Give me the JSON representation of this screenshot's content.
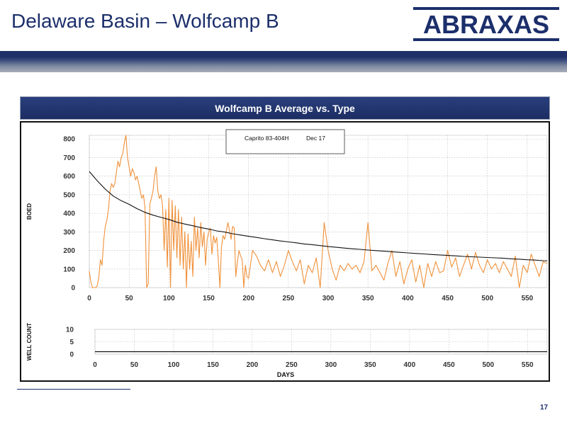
{
  "slide": {
    "title": "Delaware Basin – Wolfcamp B",
    "logo_text": "ABRAXAS",
    "page_number": "17"
  },
  "chart_header": {
    "title": "Wolfcamp B Average vs. Type"
  },
  "colors": {
    "brand_navy": "#1c2f6b",
    "actual_line": "#f0913a",
    "type_curve": "#111111"
  },
  "chart_data": [
    {
      "type": "line",
      "ylabel": "BOED",
      "xlabel": "",
      "xlim": [
        0,
        575
      ],
      "ylim": [
        0,
        820
      ],
      "xticks": [
        0,
        50,
        100,
        150,
        200,
        250,
        300,
        350,
        400,
        450,
        500,
        550
      ],
      "yticks": [
        0,
        100,
        200,
        300,
        400,
        500,
        600,
        700,
        800
      ],
      "grid": true,
      "legend": "top-center",
      "legend_entries": [
        "Caprito 83-404H",
        "Dec 17"
      ],
      "series": [
        {
          "x": [
            0,
            2,
            4,
            6,
            8,
            10,
            12,
            14,
            16,
            18,
            20,
            22,
            24,
            26,
            28,
            30,
            32,
            34,
            36,
            38,
            40,
            42,
            44,
            46,
            48,
            50,
            52,
            54,
            56,
            58,
            60,
            62,
            64,
            66,
            68,
            70,
            72,
            74,
            76,
            78,
            80,
            82,
            84,
            86,
            88,
            90,
            92,
            94,
            96,
            98,
            100,
            102,
            104,
            106,
            108,
            110,
            112,
            114,
            116,
            118,
            120,
            122,
            124,
            126,
            128,
            130,
            132,
            134,
            136,
            138,
            140,
            142,
            144,
            146,
            148,
            150,
            152,
            154,
            156,
            158,
            160,
            162,
            164,
            166,
            168,
            170,
            172,
            174,
            176,
            178,
            180,
            182,
            184,
            186,
            188,
            190,
            192,
            194,
            196,
            198,
            200,
            205,
            210,
            215,
            220,
            225,
            230,
            235,
            240,
            245,
            250,
            255,
            260,
            265,
            270,
            275,
            280,
            285,
            290,
            295,
            300,
            305,
            310,
            315,
            320,
            325,
            330,
            335,
            340,
            345,
            350,
            355,
            360,
            365,
            370,
            375,
            380,
            385,
            390,
            395,
            400,
            405,
            410,
            415,
            420,
            425,
            430,
            435,
            440,
            445,
            450,
            455,
            460,
            465,
            470,
            475,
            480,
            485,
            490,
            495,
            500,
            505,
            510,
            515,
            520,
            525,
            530,
            535,
            540,
            545,
            550,
            555,
            560,
            565,
            570,
            575
          ],
          "y": [
            90,
            30,
            0,
            0,
            0,
            10,
            60,
            150,
            120,
            250,
            330,
            360,
            420,
            520,
            560,
            540,
            560,
            620,
            680,
            650,
            700,
            720,
            780,
            820,
            700,
            650,
            600,
            640,
            620,
            580,
            600,
            560,
            520,
            480,
            500,
            430,
            0,
            20,
            450,
            480,
            520,
            600,
            650,
            520,
            480,
            500,
            440,
            200,
            420,
            110,
            480,
            0,
            470,
            200,
            440,
            160,
            420,
            120,
            380,
            100,
            300,
            0,
            290,
            100,
            250,
            60,
            380,
            200,
            320,
            160,
            350,
            220,
            300,
            120,
            260,
            300,
            320,
            180,
            280,
            240,
            270,
            150,
            0,
            220,
            280,
            260,
            300,
            350,
            310,
            260,
            330,
            320,
            60,
            140,
            200,
            170,
            150,
            0,
            120,
            60,
            50,
            200,
            170,
            120,
            90,
            150,
            80,
            140,
            60,
            120,
            200,
            140,
            90,
            150,
            20,
            120,
            80,
            160,
            0,
            350,
            200,
            100,
            40,
            120,
            90,
            130,
            100,
            120,
            80,
            140,
            350,
            90,
            120,
            80,
            40,
            130,
            200,
            60,
            140,
            20,
            100,
            150,
            30,
            120,
            0,
            130,
            60,
            140,
            80,
            90,
            200,
            110,
            160,
            60,
            120,
            180,
            100,
            190,
            120,
            80,
            150,
            100,
            130,
            80,
            140,
            100,
            60,
            170,
            0,
            120,
            80,
            180,
            120,
            60,
            140,
            130
          ]
        },
        {
          "x": [
            0,
            10,
            20,
            30,
            40,
            50,
            60,
            70,
            80,
            90,
            100,
            110,
            120,
            130,
            140,
            150,
            160,
            170,
            180,
            190,
            200,
            210,
            220,
            230,
            240,
            250,
            260,
            270,
            280,
            290,
            300,
            310,
            320,
            330,
            340,
            350,
            360,
            370,
            380,
            390,
            400,
            410,
            420,
            430,
            440,
            450,
            460,
            470,
            480,
            490,
            500,
            510,
            520,
            530,
            540,
            550,
            560,
            570,
            575
          ],
          "y": [
            625,
            575,
            530,
            493,
            468,
            448,
            425,
            405,
            390,
            378,
            367,
            352,
            342,
            333,
            323,
            315,
            305,
            299,
            290,
            283,
            276,
            270,
            263,
            257,
            251,
            246,
            241,
            235,
            231,
            226,
            221,
            217,
            213,
            209,
            206,
            202,
            199,
            196,
            193,
            190,
            187,
            184,
            181,
            178,
            176,
            173,
            171,
            168,
            166,
            164,
            162,
            160,
            158,
            155,
            153,
            150,
            148,
            145,
            144
          ]
        }
      ]
    },
    {
      "type": "line",
      "ylabel": "WELL COUNT",
      "xlabel": "DAYS",
      "xlim": [
        0,
        575
      ],
      "ylim": [
        0,
        10
      ],
      "xticks": [
        0,
        50,
        100,
        150,
        200,
        250,
        300,
        350,
        400,
        450,
        500,
        550
      ],
      "yticks": [
        0,
        5,
        10
      ],
      "grid": true,
      "series": [
        {
          "x": [
            0,
            575
          ],
          "y": [
            1,
            1
          ]
        }
      ]
    }
  ]
}
